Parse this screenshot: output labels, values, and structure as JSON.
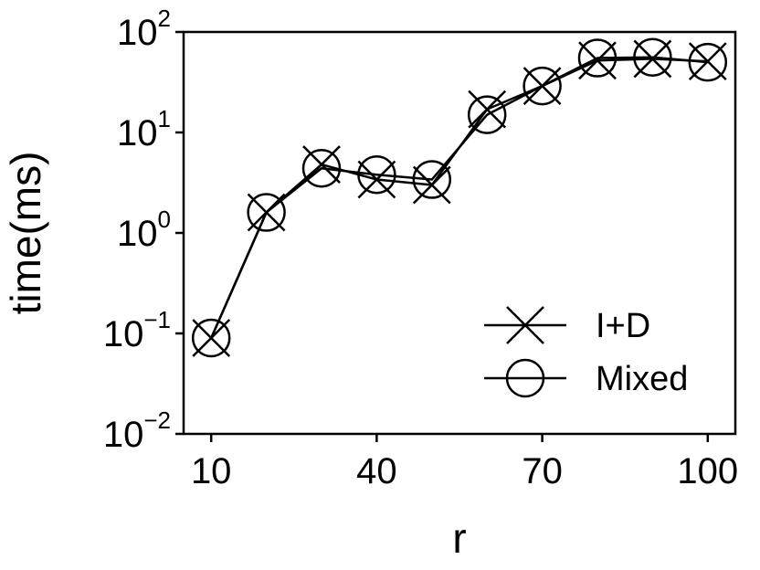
{
  "chart_data": {
    "type": "line",
    "title": "",
    "xlabel": "r",
    "ylabel": "time(ms)",
    "x_scale": "linear",
    "y_scale": "log",
    "xlim": [
      5,
      105
    ],
    "ylim": [
      0.01,
      100
    ],
    "x": [
      10,
      20,
      30,
      40,
      50,
      60,
      70,
      80,
      90,
      100
    ],
    "x_ticks": [
      10,
      40,
      70,
      100
    ],
    "x_tick_labels": [
      "10",
      "40",
      "70",
      "100"
    ],
    "y_ticks": [
      0.01,
      0.1,
      1,
      10,
      100
    ],
    "y_tick_labels": [
      {
        "base": "10",
        "exp": "−2"
      },
      {
        "base": "10",
        "exp": "−1"
      },
      {
        "base": "10",
        "exp": "0"
      },
      {
        "base": "10",
        "exp": "1"
      },
      {
        "base": "10",
        "exp": "2"
      }
    ],
    "grid": false,
    "legend_position": "lower-right",
    "series": [
      {
        "name": "I+D",
        "marker": "x",
        "color": "#000000",
        "values": [
          0.09,
          1.6,
          4.8,
          3.4,
          3.0,
          17,
          29,
          52,
          54,
          51
        ]
      },
      {
        "name": "Mixed",
        "marker": "circle",
        "color": "#000000",
        "values": [
          0.09,
          1.6,
          4.4,
          3.8,
          3.4,
          15,
          29,
          55,
          56,
          50
        ]
      }
    ]
  }
}
